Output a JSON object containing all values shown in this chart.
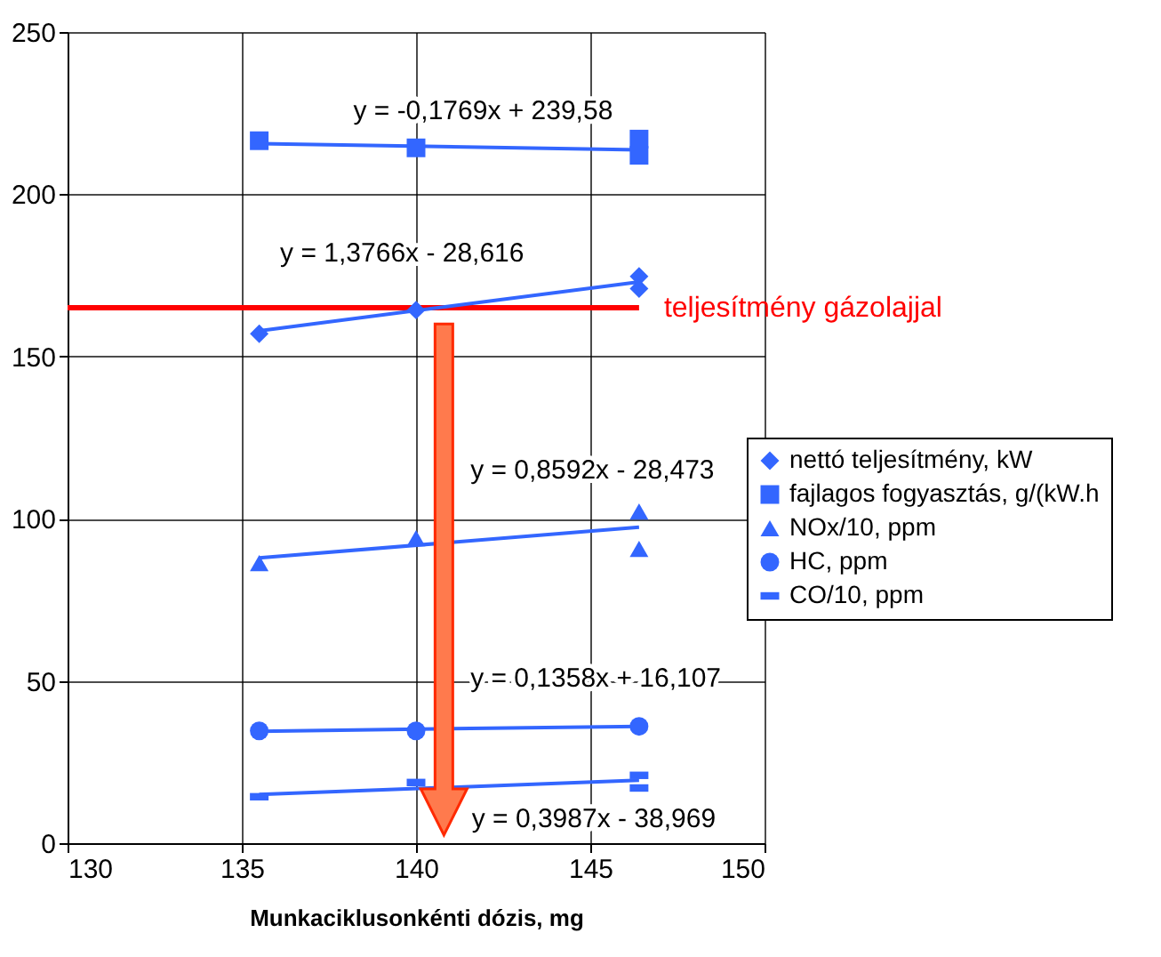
{
  "chart_data": {
    "type": "scatter",
    "xlabel": "Munkaciklusonkénti dózis, mg",
    "xlim": [
      130,
      150
    ],
    "xticks": [
      130,
      135,
      140,
      145,
      150
    ],
    "ylim": [
      0,
      250
    ],
    "yticks": [
      0,
      50,
      100,
      150,
      200,
      250
    ],
    "grid": true,
    "legend": "right",
    "series": [
      {
        "name": "nettó teljesítmény, kW",
        "color": "#3366ff",
        "marker": "diamond",
        "x": [
          135.5,
          140,
          146.4,
          146.4
        ],
        "values": [
          157,
          164.3,
          174.7,
          170.9
        ]
      },
      {
        "name": "fajlagos fogyasztás, g/(kW.h",
        "color": "#3366ff",
        "marker": "square",
        "x": [
          135.5,
          140,
          146.4,
          146.4
        ],
        "values": [
          216.5,
          214.3,
          217,
          212
        ]
      },
      {
        "name": "NOx/10, ppm",
        "color": "#3366ff",
        "marker": "triangle",
        "x": [
          135.5,
          140,
          146.4,
          146.4
        ],
        "values": [
          86.3,
          94,
          102.2,
          90.7
        ]
      },
      {
        "name": "HC, ppm",
        "color": "#3366ff",
        "marker": "circle",
        "x": [
          135.5,
          140,
          146.4
        ],
        "values": [
          34.6,
          34.6,
          36
        ]
      },
      {
        "name": "CO/10, ppm",
        "color": "#3366ff",
        "x": [
          135.5,
          140,
          146.4,
          146.4
        ],
        "values": [
          14.3,
          18.7,
          20.9,
          17
        ]
      },
      {
        "type": "line",
        "color": "#3366ff",
        "x": [
          135.5,
          146.4
        ],
        "values": [
          157.9,
          173
        ]
      },
      {
        "type": "line",
        "color": "#3366ff",
        "x": [
          135.5,
          146.4
        ],
        "values": [
          215.6,
          213.7
        ]
      },
      {
        "type": "line",
        "color": "#3366ff",
        "x": [
          135.5,
          146.4
        ],
        "values": [
          87.9,
          97.4
        ]
      },
      {
        "type": "line",
        "color": "#3366ff",
        "x": [
          135.5,
          146.4
        ],
        "values": [
          34.5,
          36
        ]
      },
      {
        "type": "line",
        "color": "#3366ff",
        "x": [
          135.5,
          146.4
        ],
        "values": [
          15,
          19.4
        ]
      }
    ],
    "ref_lines": [
      {
        "axis": "y",
        "value": 165,
        "label": "teljesítmény gázolajjal",
        "color": "#ff0000"
      }
    ],
    "annotations": [
      "y = -0,1769x + 239,58",
      "y = 1,3766x - 28,616",
      "y = 0,8592x - 28,473",
      "y = 0,1358x + 16,107",
      "y = 0,3987x - 38,969"
    ]
  }
}
